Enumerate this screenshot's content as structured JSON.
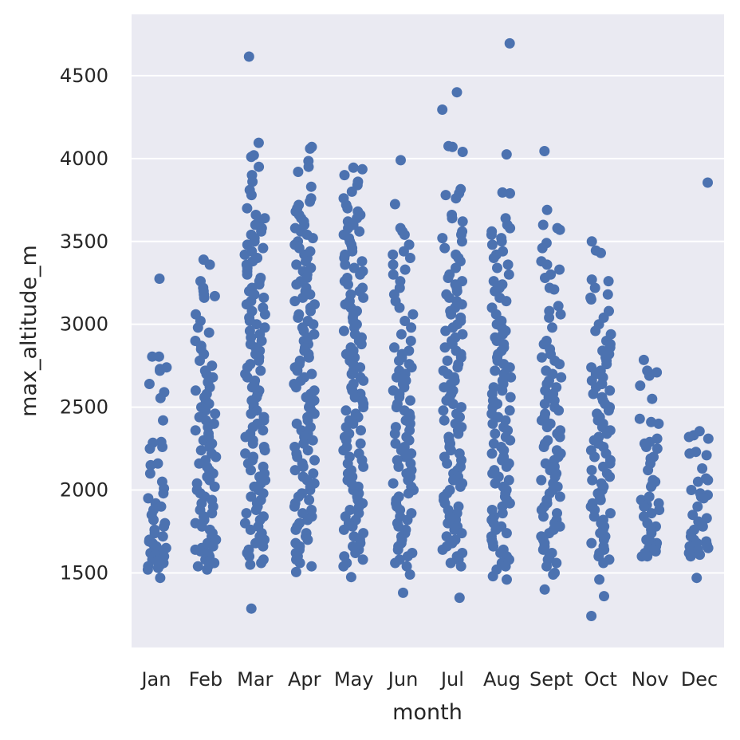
{
  "chart_data": {
    "type": "scatter",
    "subtype": "strip",
    "xlabel": "month",
    "ylabel": "max_altitude_m",
    "categories": [
      "Jan",
      "Feb",
      "Mar",
      "Apr",
      "May",
      "Jun",
      "Jul",
      "Aug",
      "Sept",
      "Oct",
      "Nov",
      "Dec"
    ],
    "ylim": [
      1050,
      4870
    ],
    "yticks": [
      1500,
      2000,
      2500,
      3000,
      3500,
      4000,
      4500
    ],
    "grid": true,
    "colors": {
      "points": "#4c72b0",
      "background": "#eaeaf2",
      "grid": "#ffffff"
    },
    "series": [
      {
        "category": "Jan",
        "values": [
          3275,
          2805,
          2805,
          2740,
          2730,
          2720,
          2640,
          2590,
          2555,
          2420,
          2290,
          2285,
          2260,
          2250,
          2160,
          2150,
          2100,
          2050,
          2010,
          1980,
          1950,
          1920,
          1900,
          1880,
          1850,
          1820,
          1800,
          1780,
          1760,
          1740,
          1720,
          1700,
          1690,
          1680,
          1670,
          1660,
          1650,
          1640,
          1630,
          1620,
          1610,
          1600,
          1590,
          1580,
          1570,
          1560,
          1550,
          1540,
          1530,
          1520,
          1470
        ]
      },
      {
        "category": "Feb",
        "values": [
          3390,
          3360,
          3260,
          3220,
          3200,
          3180,
          3170,
          3160,
          3060,
          3020,
          2980,
          2950,
          2900,
          2870,
          2850,
          2820,
          2780,
          2750,
          2720,
          2700,
          2680,
          2650,
          2620,
          2600,
          2580,
          2560,
          2540,
          2520,
          2500,
          2480,
          2460,
          2440,
          2420,
          2400,
          2380,
          2360,
          2340,
          2320,
          2300,
          2280,
          2260,
          2240,
          2220,
          2200,
          2180,
          2160,
          2140,
          2120,
          2100,
          2080,
          2060,
          2040,
          2020,
          2000,
          1980,
          1960,
          1940,
          1920,
          1900,
          1880,
          1860,
          1840,
          1820,
          1800,
          1780,
          1760,
          1740,
          1720,
          1700,
          1680,
          1660,
          1650,
          1640,
          1630,
          1620,
          1610,
          1600,
          1590,
          1580,
          1570,
          1560,
          1550,
          1540,
          1520
        ]
      },
      {
        "category": "Mar",
        "values": [
          4615,
          4095,
          4020,
          4010,
          3950,
          3900,
          3860,
          3810,
          3780,
          3700,
          3660,
          3640,
          3620,
          3600,
          3580,
          3560,
          3540,
          3520,
          3500,
          3480,
          3460,
          3440,
          3420,
          3400,
          3380,
          3360,
          3340,
          3320,
          3300,
          3280,
          3260,
          3240,
          3220,
          3200,
          3180,
          3160,
          3140,
          3120,
          3100,
          3080,
          3060,
          3040,
          3020,
          3000,
          2980,
          2960,
          2940,
          2920,
          2900,
          2880,
          2860,
          2840,
          2820,
          2800,
          2780,
          2760,
          2740,
          2720,
          2700,
          2680,
          2660,
          2640,
          2620,
          2600,
          2580,
          2560,
          2540,
          2520,
          2500,
          2480,
          2460,
          2440,
          2420,
          2400,
          2380,
          2360,
          2340,
          2320,
          2300,
          2280,
          2260,
          2240,
          2220,
          2200,
          2180,
          2160,
          2140,
          2120,
          2100,
          2080,
          2060,
          2040,
          2020,
          2000,
          1980,
          1960,
          1940,
          1920,
          1900,
          1880,
          1860,
          1840,
          1820,
          1800,
          1780,
          1760,
          1740,
          1720,
          1700,
          1680,
          1660,
          1640,
          1620,
          1600,
          1580,
          1560,
          1550,
          1285
        ]
      },
      {
        "category": "Apr",
        "values": [
          4070,
          4060,
          3985,
          3950,
          3920,
          3830,
          3760,
          3740,
          3720,
          3700,
          3680,
          3660,
          3640,
          3620,
          3600,
          3580,
          3560,
          3540,
          3520,
          3500,
          3480,
          3460,
          3440,
          3420,
          3400,
          3380,
          3360,
          3340,
          3320,
          3300,
          3280,
          3260,
          3240,
          3220,
          3200,
          3180,
          3160,
          3140,
          3120,
          3100,
          3080,
          3060,
          3040,
          3020,
          3000,
          2980,
          2960,
          2940,
          2920,
          2900,
          2880,
          2860,
          2840,
          2820,
          2800,
          2780,
          2760,
          2740,
          2720,
          2700,
          2680,
          2660,
          2640,
          2620,
          2600,
          2580,
          2560,
          2540,
          2520,
          2500,
          2480,
          2460,
          2440,
          2420,
          2400,
          2380,
          2360,
          2340,
          2320,
          2300,
          2280,
          2260,
          2240,
          2220,
          2200,
          2180,
          2160,
          2140,
          2120,
          2100,
          2080,
          2060,
          2040,
          2020,
          2000,
          1980,
          1960,
          1940,
          1920,
          1900,
          1880,
          1860,
          1840,
          1820,
          1800,
          1780,
          1760,
          1740,
          1720,
          1700,
          1680,
          1660,
          1640,
          1620,
          1600,
          1580,
          1560,
          1540,
          1505
        ]
      },
      {
        "category": "May",
        "values": [
          3945,
          3935,
          3900,
          3860,
          3840,
          3800,
          3760,
          3720,
          3700,
          3680,
          3660,
          3640,
          3620,
          3600,
          3580,
          3560,
          3540,
          3520,
          3500,
          3480,
          3460,
          3440,
          3420,
          3400,
          3380,
          3360,
          3340,
          3320,
          3300,
          3280,
          3260,
          3240,
          3220,
          3200,
          3180,
          3160,
          3140,
          3120,
          3100,
          3080,
          3060,
          3040,
          3020,
          3000,
          2980,
          2960,
          2940,
          2920,
          2900,
          2880,
          2860,
          2840,
          2820,
          2800,
          2780,
          2760,
          2740,
          2720,
          2700,
          2680,
          2660,
          2640,
          2620,
          2600,
          2580,
          2560,
          2540,
          2520,
          2500,
          2480,
          2460,
          2440,
          2420,
          2400,
          2380,
          2360,
          2340,
          2320,
          2300,
          2280,
          2260,
          2240,
          2220,
          2200,
          2180,
          2160,
          2140,
          2120,
          2100,
          2080,
          2060,
          2040,
          2020,
          2000,
          1980,
          1960,
          1940,
          1920,
          1900,
          1880,
          1860,
          1840,
          1820,
          1800,
          1780,
          1760,
          1740,
          1720,
          1700,
          1680,
          1660,
          1640,
          1620,
          1600,
          1580,
          1560,
          1540,
          1475
        ]
      },
      {
        "category": "Jun",
        "values": [
          3990,
          3725,
          3580,
          3560,
          3540,
          3480,
          3440,
          3420,
          3400,
          3360,
          3330,
          3300,
          3260,
          3220,
          3180,
          3140,
          3100,
          3060,
          3020,
          2980,
          2940,
          2900,
          2860,
          2840,
          2820,
          2800,
          2780,
          2760,
          2740,
          2720,
          2700,
          2680,
          2660,
          2640,
          2620,
          2600,
          2580,
          2560,
          2540,
          2520,
          2500,
          2480,
          2460,
          2440,
          2420,
          2400,
          2380,
          2360,
          2340,
          2320,
          2300,
          2280,
          2260,
          2240,
          2220,
          2200,
          2180,
          2160,
          2140,
          2120,
          2100,
          2080,
          2060,
          2040,
          2020,
          2000,
          1980,
          1960,
          1940,
          1920,
          1900,
          1880,
          1860,
          1840,
          1820,
          1800,
          1780,
          1760,
          1740,
          1720,
          1700,
          1680,
          1660,
          1640,
          1620,
          1600,
          1580,
          1560,
          1540,
          1490,
          1380
        ]
      },
      {
        "category": "Jul",
        "values": [
          4400,
          4295,
          4075,
          4070,
          4040,
          3815,
          3790,
          3780,
          3760,
          3660,
          3640,
          3620,
          3560,
          3540,
          3520,
          3500,
          3460,
          3420,
          3400,
          3380,
          3340,
          3300,
          3280,
          3260,
          3240,
          3220,
          3200,
          3180,
          3160,
          3140,
          3120,
          3100,
          3080,
          3060,
          3040,
          3020,
          3000,
          2980,
          2960,
          2940,
          2920,
          2900,
          2880,
          2860,
          2840,
          2820,
          2800,
          2780,
          2760,
          2740,
          2720,
          2700,
          2680,
          2660,
          2640,
          2620,
          2600,
          2580,
          2560,
          2540,
          2520,
          2500,
          2480,
          2460,
          2440,
          2420,
          2400,
          2380,
          2360,
          2340,
          2320,
          2300,
          2280,
          2260,
          2240,
          2220,
          2200,
          2180,
          2160,
          2140,
          2120,
          2100,
          2080,
          2060,
          2040,
          2020,
          2000,
          1980,
          1960,
          1940,
          1920,
          1900,
          1880,
          1860,
          1840,
          1820,
          1800,
          1780,
          1760,
          1740,
          1720,
          1700,
          1680,
          1660,
          1640,
          1620,
          1600,
          1580,
          1560,
          1540,
          1350
        ]
      },
      {
        "category": "Aug",
        "values": [
          4695,
          4025,
          3795,
          3790,
          3640,
          3600,
          3580,
          3560,
          3540,
          3520,
          3500,
          3480,
          3440,
          3420,
          3400,
          3360,
          3340,
          3300,
          3260,
          3240,
          3220,
          3200,
          3160,
          3140,
          3100,
          3060,
          3020,
          3000,
          2980,
          2960,
          2940,
          2920,
          2900,
          2880,
          2860,
          2840,
          2820,
          2800,
          2780,
          2760,
          2740,
          2720,
          2700,
          2680,
          2660,
          2640,
          2620,
          2600,
          2580,
          2560,
          2540,
          2520,
          2500,
          2480,
          2460,
          2440,
          2420,
          2400,
          2380,
          2360,
          2340,
          2320,
          2300,
          2280,
          2260,
          2240,
          2220,
          2200,
          2180,
          2160,
          2140,
          2120,
          2100,
          2080,
          2060,
          2040,
          2020,
          2000,
          1980,
          1960,
          1940,
          1920,
          1900,
          1880,
          1860,
          1840,
          1820,
          1800,
          1780,
          1760,
          1740,
          1720,
          1700,
          1680,
          1660,
          1640,
          1620,
          1600,
          1580,
          1560,
          1540,
          1520,
          1480,
          1460
        ]
      },
      {
        "category": "Sept",
        "values": [
          4045,
          3690,
          3600,
          3580,
          3570,
          3490,
          3460,
          3380,
          3360,
          3330,
          3300,
          3280,
          3220,
          3210,
          3110,
          3080,
          3060,
          3040,
          2980,
          2900,
          2880,
          2850,
          2820,
          2800,
          2780,
          2760,
          2720,
          2700,
          2680,
          2660,
          2640,
          2620,
          2600,
          2580,
          2560,
          2540,
          2520,
          2500,
          2480,
          2460,
          2440,
          2420,
          2400,
          2380,
          2360,
          2340,
          2320,
          2300,
          2280,
          2260,
          2240,
          2220,
          2200,
          2180,
          2160,
          2140,
          2120,
          2100,
          2080,
          2060,
          2040,
          2020,
          2000,
          1980,
          1960,
          1940,
          1920,
          1900,
          1880,
          1860,
          1840,
          1820,
          1800,
          1780,
          1760,
          1740,
          1720,
          1700,
          1680,
          1660,
          1640,
          1620,
          1600,
          1580,
          1560,
          1540,
          1500,
          1490,
          1400
        ]
      },
      {
        "category": "Oct",
        "values": [
          3500,
          3445,
          3430,
          3270,
          3260,
          3220,
          3180,
          3160,
          3150,
          3080,
          3040,
          3000,
          2960,
          2940,
          2900,
          2880,
          2860,
          2840,
          2820,
          2800,
          2780,
          2760,
          2740,
          2720,
          2700,
          2680,
          2660,
          2640,
          2620,
          2600,
          2580,
          2560,
          2540,
          2520,
          2500,
          2480,
          2460,
          2440,
          2420,
          2400,
          2380,
          2360,
          2340,
          2320,
          2300,
          2280,
          2260,
          2240,
          2220,
          2200,
          2180,
          2160,
          2140,
          2120,
          2100,
          2080,
          2060,
          2040,
          2020,
          2000,
          1980,
          1960,
          1940,
          1920,
          1900,
          1880,
          1860,
          1840,
          1820,
          1800,
          1780,
          1760,
          1740,
          1720,
          1700,
          1680,
          1660,
          1640,
          1620,
          1600,
          1580,
          1560,
          1460,
          1360,
          1240
        ]
      },
      {
        "category": "Nov",
        "values": [
          2785,
          2720,
          2710,
          2690,
          2630,
          2550,
          2430,
          2410,
          2400,
          2310,
          2290,
          2280,
          2260,
          2250,
          2200,
          2190,
          2160,
          2120,
          2060,
          2050,
          2030,
          2020,
          1960,
          1940,
          1920,
          1910,
          1900,
          1880,
          1860,
          1840,
          1800,
          1780,
          1760,
          1740,
          1700,
          1690,
          1680,
          1670,
          1660,
          1650,
          1640,
          1630,
          1620,
          1610,
          1600,
          1600
        ]
      },
      {
        "category": "Dec",
        "values": [
          3855,
          2355,
          2330,
          2320,
          2310,
          2230,
          2220,
          2210,
          2130,
          2070,
          2060,
          2050,
          2000,
          1980,
          1970,
          1960,
          1950,
          1900,
          1850,
          1830,
          1810,
          1800,
          1780,
          1760,
          1740,
          1720,
          1700,
          1690,
          1680,
          1670,
          1660,
          1650,
          1640,
          1630,
          1620,
          1610,
          1600,
          1470
        ]
      }
    ]
  }
}
